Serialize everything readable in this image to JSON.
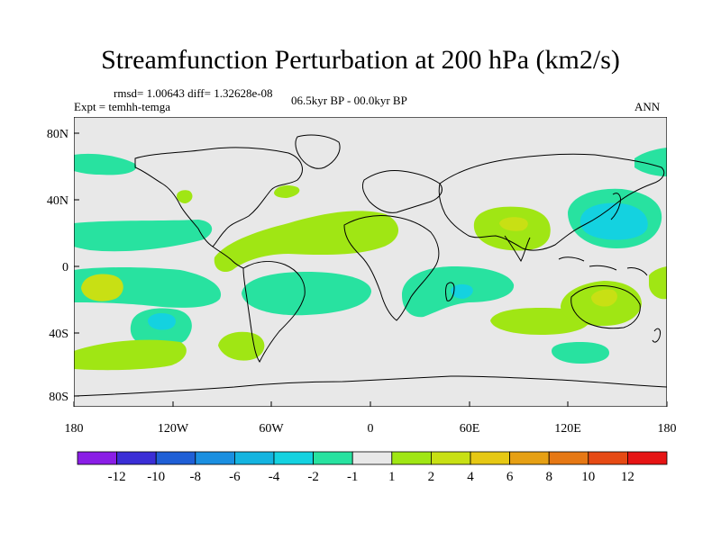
{
  "title": "Streamfunction Perturbation at 200 hPa (km2/s)",
  "stats": "rmsd= 1.00643 diff= 1.32628e-08",
  "experiment": "Expt = temhh-temga",
  "period": "06.5kyr BP - 00.0kyr BP",
  "season": "ANN",
  "lat_labels": [
    "80N",
    "40N",
    "0",
    "40S",
    "80S"
  ],
  "lon_labels": [
    "180",
    "120W",
    "60W",
    "0",
    "60E",
    "120E",
    "180"
  ],
  "colorbar": {
    "labels": [
      "-12",
      "-10",
      "-8",
      "-6",
      "-4",
      "-2",
      "-1",
      "1",
      "2",
      "4",
      "6",
      "8",
      "10",
      "12"
    ],
    "colors": [
      "#8a1ee6",
      "#3b2ed6",
      "#1f5fd6",
      "#1a8fe0",
      "#14b4e0",
      "#14d2e0",
      "#28e2a0",
      "#e8e8e8",
      "#a0e614",
      "#c8e014",
      "#e6c814",
      "#e6a014",
      "#e67814",
      "#e64a14",
      "#e61414"
    ]
  },
  "map": {
    "background": "#e8e8e8",
    "anomalies": [
      {
        "name": "Pacific low N+",
        "level": "2"
      },
      {
        "name": "Atlantic band",
        "level": "2"
      },
      {
        "name": "Asian high",
        "level": "4"
      },
      {
        "name": "NW Pacific low",
        "level": "-4"
      },
      {
        "name": "S Pacific high",
        "level": "6"
      },
      {
        "name": "S Pacific low",
        "level": "-4"
      },
      {
        "name": "Indian low",
        "level": "-4"
      },
      {
        "name": "Australian high",
        "level": "6"
      }
    ]
  }
}
